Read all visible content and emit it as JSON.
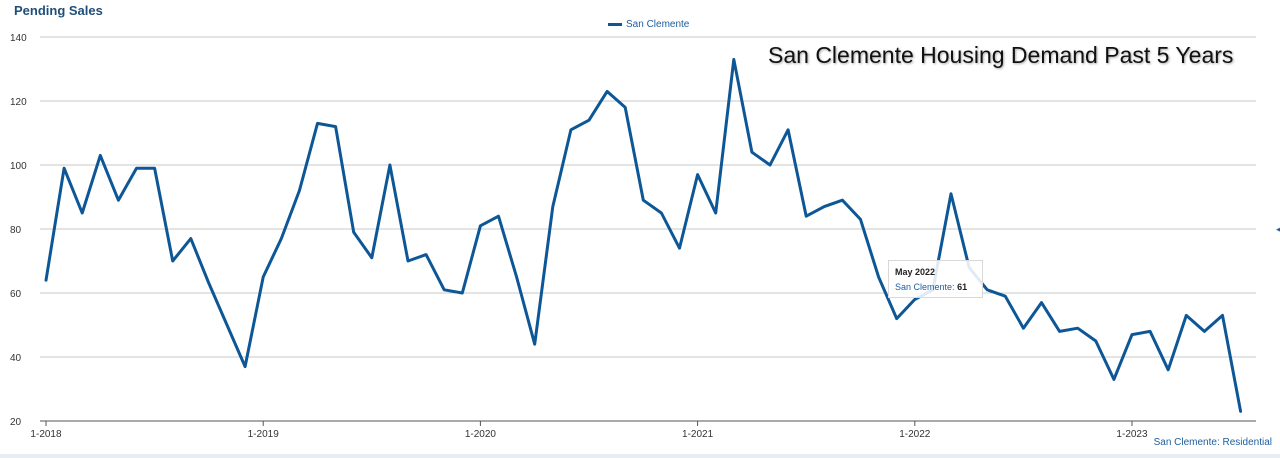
{
  "chart_data": {
    "type": "line",
    "ylabel": "Pending Sales",
    "annotation": "San Clemente Housing Demand Past 5 Years",
    "credit": "San Clemente: Residential",
    "ylim": [
      20,
      140
    ],
    "yticks": [
      20,
      40,
      60,
      80,
      100,
      120,
      140
    ],
    "xtick_labels": [
      "1-2018",
      "1-2019",
      "1-2020",
      "1-2021",
      "1-2022",
      "1-2023"
    ],
    "x_start": "2018-01",
    "grid": "horizontal",
    "legend_position": "top-center",
    "series": [
      {
        "name": "San Clemente",
        "color": "#0d5796",
        "x": [
          "2018-01",
          "2018-02",
          "2018-03",
          "2018-04",
          "2018-05",
          "2018-06",
          "2018-07",
          "2018-08",
          "2018-09",
          "2018-10",
          "2018-11",
          "2018-12",
          "2019-01",
          "2019-02",
          "2019-03",
          "2019-04",
          "2019-05",
          "2019-06",
          "2019-07",
          "2019-08",
          "2019-09",
          "2019-10",
          "2019-11",
          "2019-12",
          "2020-01",
          "2020-02",
          "2020-03",
          "2020-04",
          "2020-05",
          "2020-06",
          "2020-07",
          "2020-08",
          "2020-09",
          "2020-10",
          "2020-11",
          "2020-12",
          "2021-01",
          "2021-02",
          "2021-03",
          "2021-04",
          "2021-05",
          "2021-06",
          "2021-07",
          "2021-08",
          "2021-09",
          "2021-10",
          "2021-11",
          "2021-12",
          "2022-01",
          "2022-02",
          "2022-03",
          "2022-04",
          "2022-05",
          "2022-06",
          "2022-07",
          "2022-08",
          "2022-09",
          "2022-10",
          "2022-11",
          "2022-12",
          "2023-01",
          "2023-02",
          "2023-03",
          "2023-04",
          "2023-05",
          "2023-06",
          "2023-07"
        ],
        "values": [
          64,
          99,
          85,
          103,
          89,
          99,
          99,
          70,
          77,
          63,
          50,
          37,
          65,
          77,
          92,
          113,
          112,
          79,
          71,
          100,
          70,
          72,
          61,
          60,
          81,
          84,
          65,
          44,
          87,
          111,
          114,
          123,
          118,
          89,
          85,
          74,
          97,
          85,
          133,
          104,
          100,
          111,
          84,
          87,
          89,
          83,
          65,
          52,
          58,
          61,
          91,
          68,
          61,
          59,
          49,
          57,
          48,
          49,
          45,
          33,
          47,
          48,
          36,
          53,
          48,
          53,
          23
        ]
      }
    ],
    "tooltip": {
      "title": "May 2022",
      "series_label": "San Clemente",
      "value": "61"
    }
  }
}
